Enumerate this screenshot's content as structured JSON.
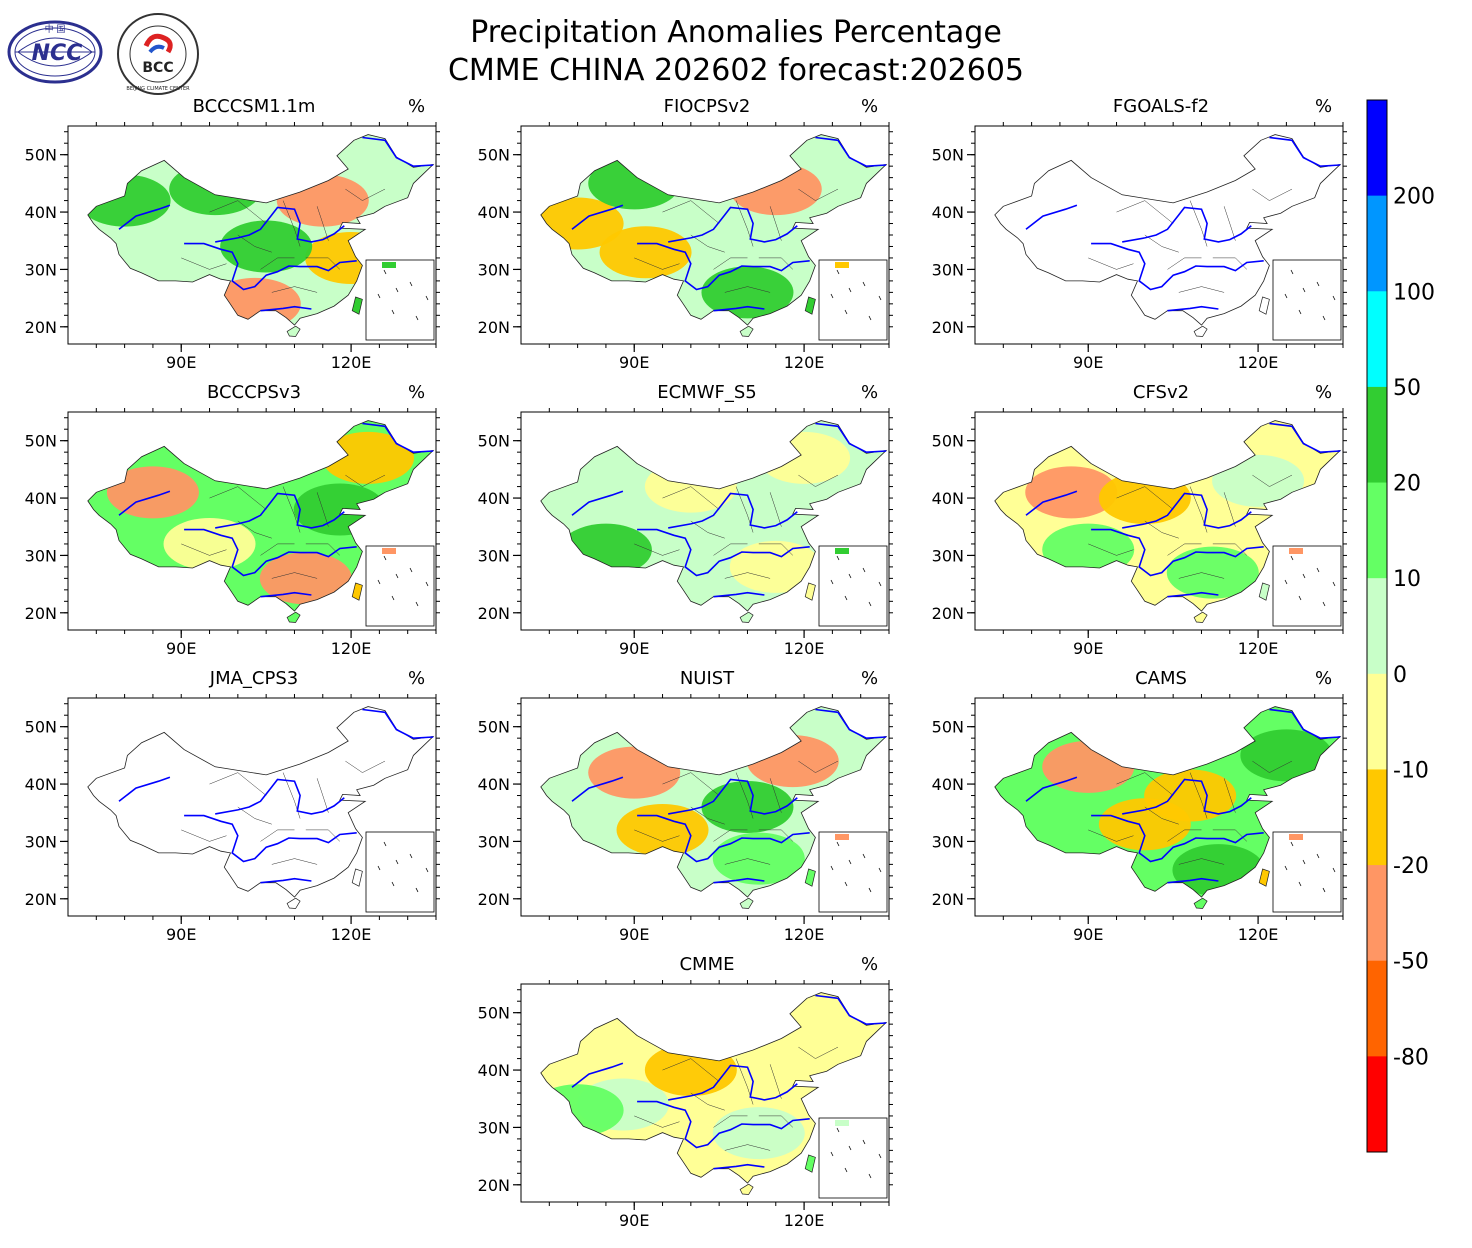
{
  "header": {
    "title_line1": "Precipitation Anomalies Percentage",
    "title_line2": "CMME CHINA 202602 forecast:202605",
    "logo_left_text": "NCC",
    "logo_left_cn": "中 国",
    "logo_right_text": "BCC",
    "logo_right_ring": "BEIJING CLIMATE CENTER"
  },
  "chart_data": {
    "type": "map-grid",
    "title": "Precipitation Anomalies Percentage",
    "subtitle": "CMME CHINA 202602 forecast:202605",
    "unit": "%",
    "x_ticks": [
      "90E",
      "120E"
    ],
    "y_ticks": [
      "50N",
      "40N",
      "30N",
      "20N"
    ],
    "lon_range": [
      70,
      135
    ],
    "lat_range": [
      17,
      55
    ],
    "colorbar": {
      "labels": [
        "200",
        "100",
        "50",
        "20",
        "10",
        "0",
        "-10",
        "-20",
        "-50",
        "-80"
      ],
      "colors": [
        "#0000ff",
        "#0096ff",
        "#00ffff",
        "#32cd32",
        "#64ff64",
        "#c8ffc8",
        "#ffff96",
        "#ffc800",
        "#ff9664",
        "#ff6400",
        "#ff0000"
      ]
    },
    "panels": [
      {
        "name": "BCCCSM1.1m",
        "unit": "%",
        "has_data": true,
        "fill": "#c8ffc8",
        "regions": [
          {
            "lon": 80,
            "lat": 42,
            "c": "#32cd32"
          },
          {
            "lon": 96,
            "lat": 44,
            "c": "#32cd32"
          },
          {
            "lon": 115,
            "lat": 42,
            "c": "#ff9664"
          },
          {
            "lon": 120,
            "lat": 32,
            "c": "#ffc800"
          },
          {
            "lon": 103,
            "lat": 24,
            "c": "#ff9664"
          },
          {
            "lon": 105,
            "lat": 34,
            "c": "#32cd32"
          }
        ]
      },
      {
        "name": "FIOCPSv2",
        "unit": "%",
        "has_data": true,
        "fill": "#c8ffc8",
        "regions": [
          {
            "lon": 80,
            "lat": 38,
            "c": "#ffc800"
          },
          {
            "lon": 115,
            "lat": 44,
            "c": "#ff9664"
          },
          {
            "lon": 110,
            "lat": 26,
            "c": "#32cd32"
          },
          {
            "lon": 92,
            "lat": 33,
            "c": "#ffc800"
          },
          {
            "lon": 90,
            "lat": 45,
            "c": "#32cd32"
          }
        ]
      },
      {
        "name": "FGOALS-f2",
        "unit": "%",
        "has_data": false
      },
      {
        "name": "BCCCPSv3",
        "unit": "%",
        "has_data": true,
        "fill": "#64ff64",
        "regions": [
          {
            "lon": 85,
            "lat": 41,
            "c": "#ff9664"
          },
          {
            "lon": 112,
            "lat": 26,
            "c": "#ff9664"
          },
          {
            "lon": 95,
            "lat": 32,
            "c": "#ffff96"
          },
          {
            "lon": 118,
            "lat": 38,
            "c": "#32cd32"
          },
          {
            "lon": 123,
            "lat": 47,
            "c": "#ffc800"
          }
        ]
      },
      {
        "name": "ECMWF_S5",
        "unit": "%",
        "has_data": true,
        "fill": "#c8ffc8",
        "regions": [
          {
            "lon": 85,
            "lat": 31,
            "c": "#32cd32"
          },
          {
            "lon": 100,
            "lat": 42,
            "c": "#ffff96"
          },
          {
            "lon": 115,
            "lat": 28,
            "c": "#ffff96"
          },
          {
            "lon": 120,
            "lat": 47,
            "c": "#ffff96"
          }
        ]
      },
      {
        "name": "CFSv2",
        "unit": "%",
        "has_data": true,
        "fill": "#ffff96",
        "regions": [
          {
            "lon": 87,
            "lat": 41,
            "c": "#ff9664"
          },
          {
            "lon": 100,
            "lat": 40,
            "c": "#ffc800"
          },
          {
            "lon": 112,
            "lat": 27,
            "c": "#64ff64"
          },
          {
            "lon": 90,
            "lat": 31,
            "c": "#64ff64"
          },
          {
            "lon": 120,
            "lat": 43,
            "c": "#c8ffc8"
          }
        ]
      },
      {
        "name": "JMA_CPS3",
        "unit": "%",
        "has_data": false
      },
      {
        "name": "NUIST",
        "unit": "%",
        "has_data": true,
        "fill": "#c8ffc8",
        "regions": [
          {
            "lon": 118,
            "lat": 44,
            "c": "#ff9664"
          },
          {
            "lon": 110,
            "lat": 36,
            "c": "#32cd32"
          },
          {
            "lon": 90,
            "lat": 42,
            "c": "#ff9664"
          },
          {
            "lon": 95,
            "lat": 32,
            "c": "#ffc800"
          },
          {
            "lon": 112,
            "lat": 27,
            "c": "#64ff64"
          }
        ]
      },
      {
        "name": "CAMS",
        "unit": "%",
        "has_data": true,
        "fill": "#64ff64",
        "regions": [
          {
            "lon": 90,
            "lat": 43,
            "c": "#ff9664"
          },
          {
            "lon": 108,
            "lat": 38,
            "c": "#ffc800"
          },
          {
            "lon": 113,
            "lat": 25,
            "c": "#32cd32"
          },
          {
            "lon": 125,
            "lat": 45,
            "c": "#32cd32"
          },
          {
            "lon": 100,
            "lat": 33,
            "c": "#ffc800"
          }
        ]
      },
      {
        "name": "CMME",
        "unit": "%",
        "has_data": true,
        "fill": "#ffff96",
        "regions": [
          {
            "lon": 88,
            "lat": 34,
            "c": "#c8ffc8"
          },
          {
            "lon": 100,
            "lat": 40,
            "c": "#ffc800"
          },
          {
            "lon": 112,
            "lat": 29,
            "c": "#c8ffc8"
          },
          {
            "lon": 80,
            "lat": 33,
            "c": "#64ff64"
          }
        ]
      }
    ]
  }
}
